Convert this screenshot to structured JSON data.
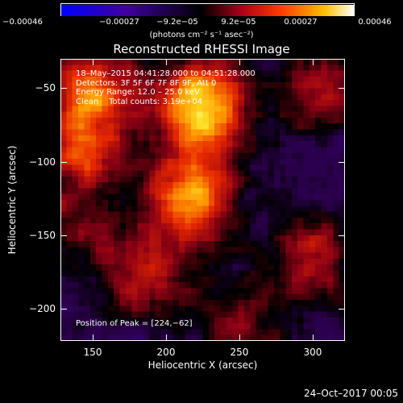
{
  "colorbar": {
    "ticks": [
      "−0.00046",
      "−0.00027",
      "−9.2e−05",
      "9.2e−05",
      "0.00027",
      "0.00046"
    ],
    "units": "(photons cm⁻² s⁻¹ asec⁻²)",
    "range": [
      -0.00046,
      0.00046
    ]
  },
  "plot": {
    "title": "Reconstructed RHESSI Image",
    "info_lines": [
      "18–May–2015 04:41:28.000 to 04:51:28.000",
      "Detectors: 3F 5F 6F 7F 8F 9F, Att 0",
      "Energy Range: 12.0 – 25.0 keV",
      "Clean    Total counts: 3.19e+04"
    ],
    "peak_text": "Position of Peak = [224,−62]"
  },
  "timestamp": "24–Oct–2017 00:05",
  "chart_data": {
    "type": "heatmap",
    "title": "Reconstructed RHESSI Image",
    "xlabel": "Heliocentric X (arcsec)",
    "ylabel": "Heliocentric Y (arcsec)",
    "xlim": [
      128,
      322
    ],
    "ylim": [
      -222,
      -30
    ],
    "x_ticks": [
      150,
      200,
      250,
      300
    ],
    "y_ticks": [
      -50,
      -100,
      -150,
      -200
    ],
    "x_tick_labels": [
      "150",
      "200",
      "250",
      "300"
    ],
    "y_tick_labels": [
      "−50",
      "−100",
      "−150",
      "−200"
    ],
    "peak_position": [
      224,
      -62
    ],
    "sources": [
      {
        "x": 224,
        "y": -62,
        "value": 1.0
      },
      {
        "x": 218,
        "y": -125,
        "value": 0.82
      },
      {
        "x": 150,
        "y": -50,
        "value": 0.7
      },
      {
        "x": 142,
        "y": -95,
        "value": 0.55
      },
      {
        "x": 303,
        "y": -50,
        "value": 0.45
      },
      {
        "x": 185,
        "y": -180,
        "value": 0.45
      },
      {
        "x": 300,
        "y": -165,
        "value": 0.5
      },
      {
        "x": 250,
        "y": -210,
        "value": 0.35
      },
      {
        "x": 140,
        "y": -150,
        "value": 0.3
      }
    ],
    "colormap": "red-temperature"
  }
}
